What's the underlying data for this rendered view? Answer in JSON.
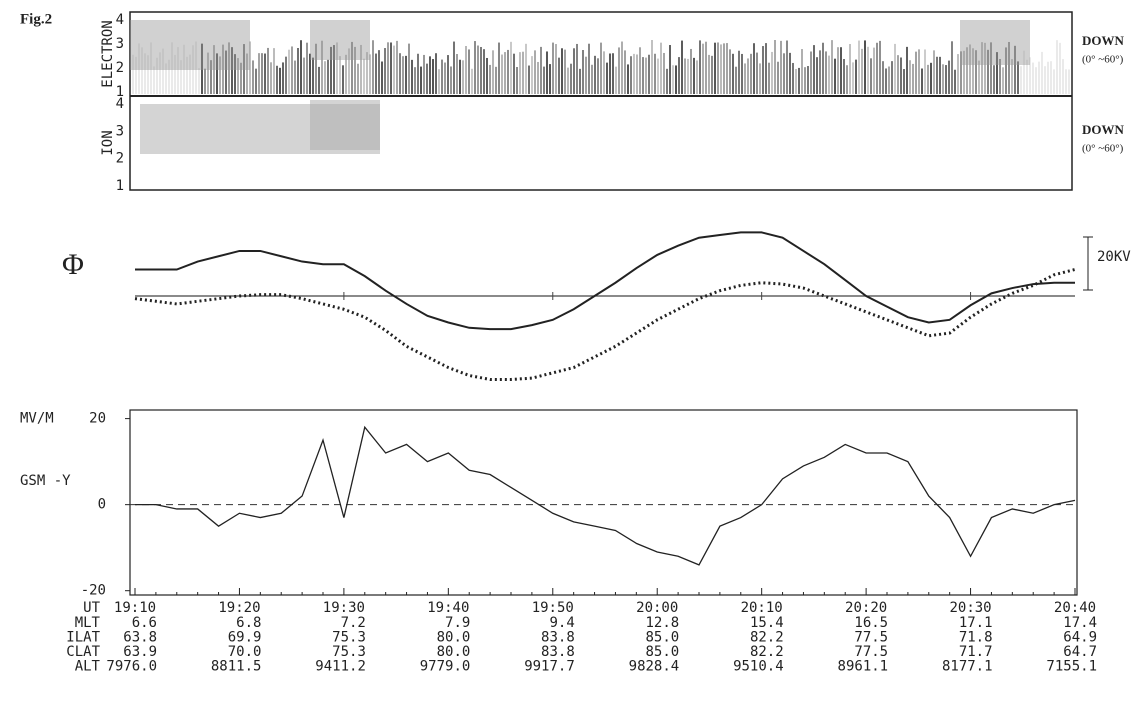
{
  "figure_label": "Fig.2",
  "spectrogram": {
    "panels": [
      {
        "label": "ELECTRON",
        "yticks": [
          1,
          2,
          3,
          4
        ],
        "direction": "DOWN",
        "angle": "(0° ~60°)"
      },
      {
        "label": "ION",
        "yticks": [
          1,
          2,
          3,
          4
        ],
        "direction": "DOWN",
        "angle": "(0° ~60°)"
      }
    ]
  },
  "orbit_table": {
    "rows": [
      {
        "label": "MLT",
        "values": [
          "6.6",
          "6.8",
          "7.2",
          "7.9",
          "9.4",
          "12.8",
          "15.4",
          "16.5",
          "17.1",
          "17.4"
        ]
      },
      {
        "label": "ILAT",
        "values": [
          "63.8",
          "69.9",
          "75.3",
          "80.0",
          "83.8",
          "85.0",
          "82.2",
          "77.5",
          "71.8",
          "64.9"
        ]
      },
      {
        "label": "CLAT",
        "values": [
          "63.9",
          "70.0",
          "75.3",
          "80.0",
          "83.8",
          "85.0",
          "82.2",
          "77.5",
          "71.7",
          "64.7"
        ]
      },
      {
        "label": "ALT",
        "values": [
          "7976.0",
          "8811.5",
          "9411.2",
          "9779.0",
          "9917.7",
          "9828.4",
          "9510.4",
          "8961.1",
          "8177.1",
          "7155.1"
        ]
      }
    ]
  },
  "chart_data": [
    {
      "type": "line",
      "symbol": "Φ",
      "scale_bar": {
        "value": 20,
        "label": "20KV"
      },
      "series": [
        {
          "name": null,
          "style": "solid",
          "color": "#222",
          "values": [
            10,
            10,
            10,
            13,
            15,
            17,
            17,
            15,
            13,
            12,
            12,
            7.5,
            2,
            -3,
            -7.5,
            -10,
            -12,
            -12.5,
            -12.5,
            -11,
            -9,
            -5,
            0,
            5,
            10.5,
            15.5,
            19,
            22,
            23,
            24,
            24,
            22,
            17,
            12,
            6,
            0,
            -4,
            -8,
            -10,
            -9,
            -3.5,
            1,
            3,
            4.5,
            5,
            5
          ]
        },
        {
          "name": null,
          "style": "dotted",
          "color": "#222",
          "values": [
            -1,
            -2,
            -3,
            -2,
            -1,
            0,
            0.5,
            0.5,
            -1,
            -3,
            -5,
            -8,
            -13,
            -19,
            -23,
            -27,
            -30,
            -31.5,
            -31.5,
            -31,
            -29,
            -27,
            -23,
            -19,
            -14,
            -9,
            -5,
            -1,
            2,
            4,
            5,
            4.5,
            3,
            0,
            -3,
            -6,
            -9,
            -12,
            -15,
            -14,
            -8,
            -3,
            1,
            4,
            8,
            10
          ]
        }
      ]
    },
    {
      "type": "line",
      "y_label": "MV/M",
      "y_sublabel": "GSM -Y",
      "x_label": "UT",
      "categories": [
        "19:10",
        null,
        null,
        null,
        null,
        "19:20",
        null,
        null,
        null,
        null,
        "19:30",
        null,
        null,
        null,
        null,
        "19:40",
        null,
        null,
        null,
        null,
        "19:50",
        null,
        null,
        null,
        null,
        "20:00",
        null,
        null,
        null,
        null,
        "20:10",
        null,
        null,
        null,
        null,
        "20:20",
        null,
        null,
        null,
        null,
        "20:30",
        null,
        null,
        null,
        null,
        "20:40"
      ],
      "values": [
        0,
        0,
        -1,
        -1,
        -5,
        -2,
        -3,
        -2,
        2,
        15,
        -3,
        18,
        12,
        14,
        10,
        12,
        8,
        7,
        4,
        1,
        -2,
        -4,
        -5,
        -6,
        -9,
        -11,
        -12,
        -14,
        -5,
        -3,
        0,
        6,
        9,
        11,
        14,
        12,
        12,
        10,
        2,
        -3,
        -12,
        -3,
        -1,
        -2,
        0,
        1
      ],
      "color": "#222",
      "ylim": [
        -21,
        22
      ],
      "yticks": [
        -20,
        0,
        20
      ],
      "zero_line": true
    }
  ]
}
